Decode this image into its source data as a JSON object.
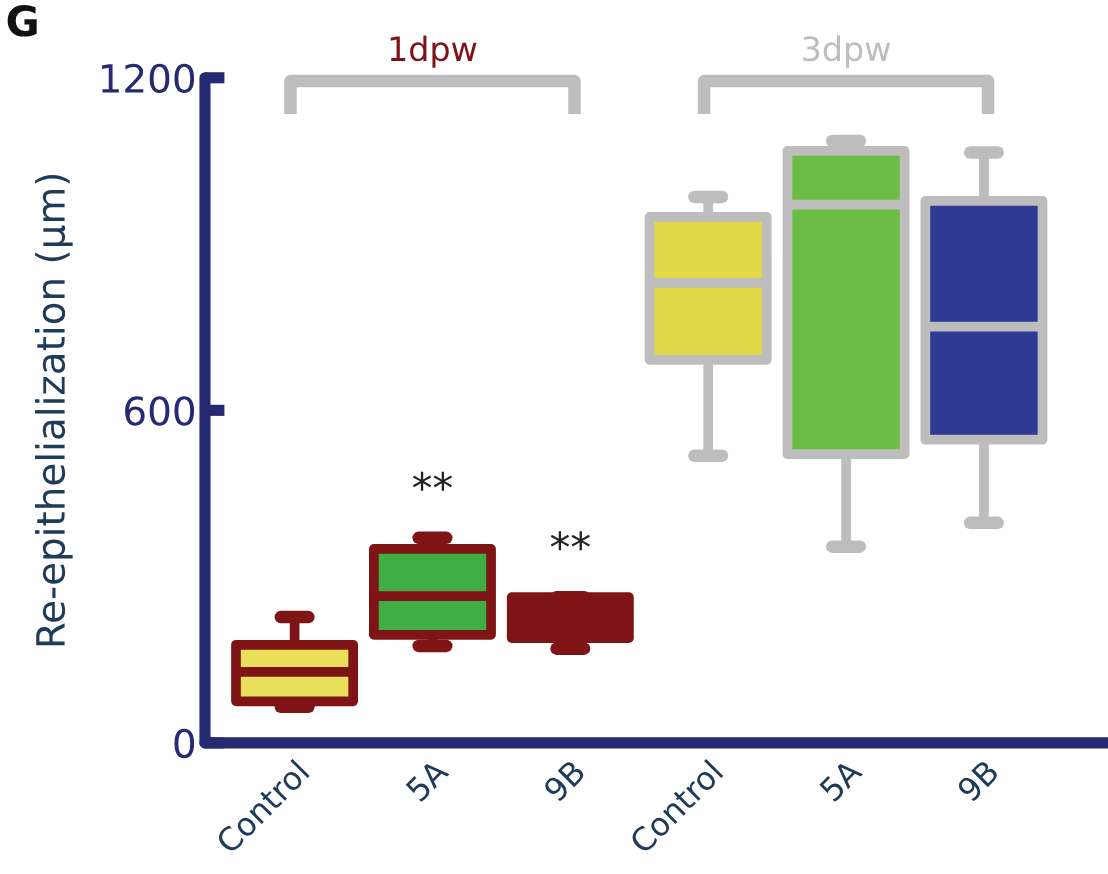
{
  "chart_data": {
    "type": "box",
    "ylabel": "Re-epithelialization (µm)",
    "categories": [
      "Control",
      "5A",
      "9B",
      "Control",
      "5A",
      "9B"
    ],
    "series": [
      {
        "name": "1dpw",
        "color": "#7f1416",
        "colors": [
          "#e8df5a",
          "#3fae45",
          "#7f1416",
          null,
          null,
          null
        ],
        "boxes": [
          {
            "low": 65,
            "q1": 75,
            "median": 128,
            "q3": 177,
            "high": 227
          },
          {
            "low": 175,
            "q1": 195,
            "median": 265,
            "q3": 350,
            "high": 370
          },
          {
            "low": 170,
            "q1": 189,
            "median": 236,
            "q3": 263,
            "high": 263
          },
          null,
          null,
          null
        ]
      },
      {
        "name": "3dpw",
        "color": "#bdbdbd",
        "colors": [
          null,
          null,
          null,
          "#e3d84a",
          "#6cbd45",
          "#2e3a94"
        ],
        "boxes": [
          null,
          null,
          null,
          {
            "low": 518,
            "q1": 691,
            "median": 830,
            "q3": 949,
            "high": 985
          },
          {
            "low": 354,
            "q1": 521,
            "median": 971,
            "q3": 1068,
            "high": 1086
          },
          {
            "low": 397,
            "q1": 547,
            "median": 751,
            "q3": 978,
            "high": 1065
          }
        ]
      }
    ],
    "ylim": [
      0,
      1200
    ],
    "yticks": [
      0,
      600,
      1200
    ],
    "annotations": [
      "G",
      "**",
      "**"
    ]
  }
}
